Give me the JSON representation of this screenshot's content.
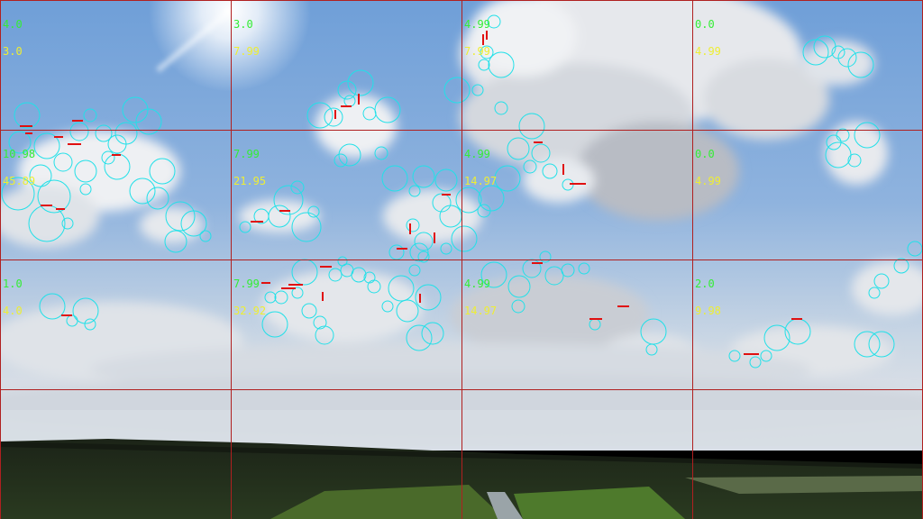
{
  "colors": {
    "grid_line": "#b02020",
    "label_a": "#33ee33",
    "label_b": "#eeee33",
    "circle": "#22e0e8",
    "marker": "#e01010"
  },
  "grid": {
    "rows": 4,
    "cols": 4,
    "cells": [
      {
        "a": "4.0",
        "b": "3.0"
      },
      {
        "a": "3.0",
        "b": "7.99"
      },
      {
        "a": "4.99",
        "b": "7.99"
      },
      {
        "a": "0.0",
        "b": "4.99"
      },
      {
        "a": "10.98",
        "b": "45.89"
      },
      {
        "a": "7.99",
        "b": "21.95"
      },
      {
        "a": "4.99",
        "b": "14.97"
      },
      {
        "a": "0.0",
        "b": "4.99"
      },
      {
        "a": "1.0",
        "b": "4.0"
      },
      {
        "a": "7.99",
        "b": "32.92"
      },
      {
        "a": "4.99",
        "b": "14.97"
      },
      {
        "a": "2.0",
        "b": "9.98"
      }
    ]
  }
}
